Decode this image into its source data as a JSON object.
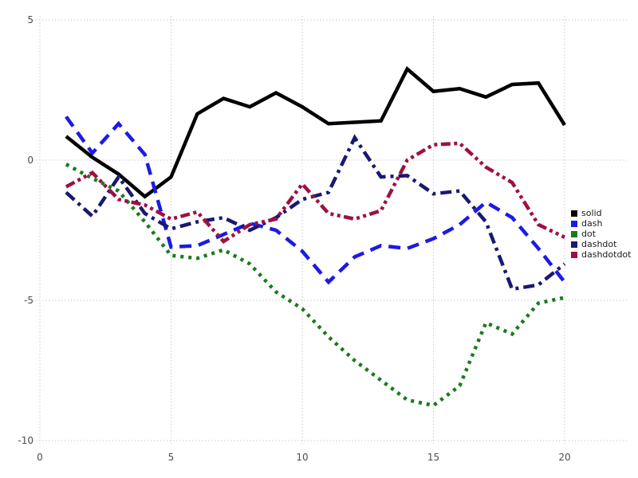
{
  "chart_data": {
    "type": "line",
    "title": "",
    "xlabel": "",
    "ylabel": "",
    "xlim": [
      0,
      20
    ],
    "ylim": [
      -10,
      5
    ],
    "x_ticks": [
      0,
      5,
      10,
      15,
      20
    ],
    "y_ticks": [
      5,
      0,
      -5,
      -10
    ],
    "grid": true,
    "grid_style": "dotted",
    "grid_color": "#c9c9e0",
    "tick_label_color": "#4d4d4d",
    "background_color": "#ffffff",
    "legend_position": "right",
    "x": [
      1,
      2,
      3,
      4,
      5,
      6,
      7,
      8,
      9,
      10,
      11,
      12,
      13,
      14,
      15,
      16,
      17,
      18,
      19,
      20
    ],
    "series": [
      {
        "name": "solid",
        "line_style": "solid",
        "color": "#000000",
        "values": [
          0.85,
          0.1,
          -0.5,
          -1.3,
          -0.6,
          1.65,
          2.2,
          1.9,
          2.4,
          1.9,
          1.3,
          1.35,
          1.4,
          3.25,
          2.45,
          2.55,
          2.25,
          2.7,
          2.75,
          1.25
        ]
      },
      {
        "name": "dash",
        "line_style": "dash",
        "color": "#1b1be4",
        "values": [
          1.55,
          0.25,
          1.3,
          0.2,
          -3.1,
          -3.05,
          -2.65,
          -2.25,
          -2.5,
          -3.25,
          -4.35,
          -3.45,
          -3.05,
          -3.15,
          -2.8,
          -2.3,
          -1.5,
          -2.05,
          -3.15,
          -4.35
        ]
      },
      {
        "name": "dot",
        "line_style": "dot",
        "color": "#1a7a1a",
        "values": [
          -0.15,
          -0.65,
          -1.1,
          -2.2,
          -3.4,
          -3.5,
          -3.2,
          -3.7,
          -4.7,
          -5.3,
          -6.3,
          -7.15,
          -7.85,
          -8.55,
          -8.75,
          -8.05,
          -5.8,
          -6.2,
          -5.1,
          -4.9
        ]
      },
      {
        "name": "dashdot",
        "line_style": "dashdot",
        "color": "#191970",
        "values": [
          -1.15,
          -2.0,
          -0.6,
          -1.9,
          -2.45,
          -2.2,
          -2.05,
          -2.5,
          -2.05,
          -1.4,
          -1.15,
          0.8,
          -0.6,
          -0.55,
          -1.2,
          -1.1,
          -2.2,
          -4.6,
          -4.45,
          -3.7
        ]
      },
      {
        "name": "dashdotdot",
        "line_style": "dashdotdot",
        "color": "#9e1045",
        "values": [
          -0.95,
          -0.45,
          -1.4,
          -1.6,
          -2.1,
          -1.85,
          -2.9,
          -2.3,
          -2.1,
          -0.85,
          -1.9,
          -2.1,
          -1.8,
          0.0,
          0.55,
          0.6,
          -0.25,
          -0.8,
          -2.3,
          -2.75
        ]
      }
    ],
    "legend": {
      "entries": [
        "solid",
        "dash",
        "dot",
        "dashdot",
        "dashdotdot"
      ]
    }
  }
}
